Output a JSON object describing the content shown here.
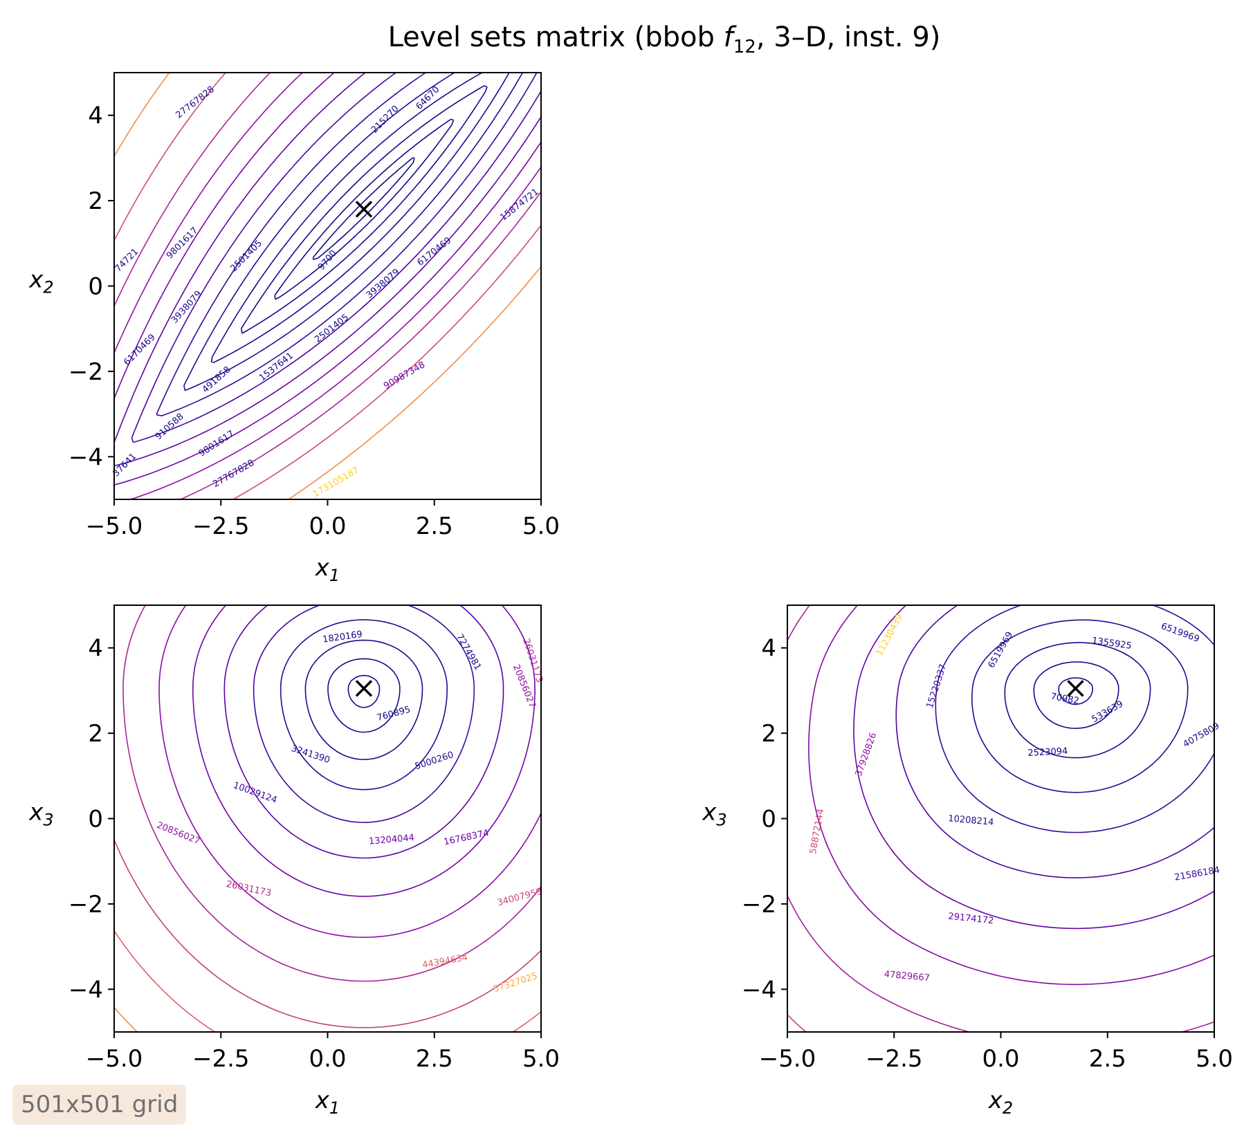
{
  "figure": {
    "title_prefix": "Level sets matrix (bbob ",
    "title_func": "f",
    "title_func_sub": "12",
    "title_suffix": ", 3–D, inst. 9)",
    "badge": "501x501 grid",
    "colormap": [
      "#0d0887",
      "#3e049c",
      "#6a00a8",
      "#900da4",
      "#b12a90",
      "#cc4778",
      "#e16462",
      "#f2844b",
      "#fca636",
      "#fcce25",
      "#f0f921"
    ]
  },
  "chart_data": [
    {
      "type": "contour",
      "panel": "x1-x2",
      "xlabel": "x",
      "xlabel_sub": "1",
      "ylabel": "x",
      "ylabel_sub": "2",
      "xlim": [
        -5,
        5
      ],
      "ylim": [
        -5,
        5
      ],
      "xticks": [
        -5.0,
        -2.5,
        0.0,
        2.5,
        5.0
      ],
      "xtick_labels": [
        "−5.0",
        "−2.5",
        "0.0",
        "2.5",
        "5.0"
      ],
      "yticks": [
        -4,
        -2,
        0,
        2,
        4
      ],
      "ytick_labels": [
        "−4",
        "−2",
        "0",
        "2",
        "4"
      ],
      "optimum": {
        "x": 0.85,
        "y": 1.8
      },
      "contour_labels": [
        {
          "text": "27767828",
          "x": -3.1,
          "y": 4.3,
          "angle": -38,
          "color": "#1b0a8a"
        },
        {
          "text": "64670",
          "x": 2.35,
          "y": 4.4,
          "angle": -45,
          "color": "#0d0887"
        },
        {
          "text": "215270",
          "x": 1.35,
          "y": 3.9,
          "angle": -45,
          "color": "#0d0887"
        },
        {
          "text": "15874721",
          "x": 4.5,
          "y": 1.9,
          "angle": -38,
          "color": "#1b0a8a"
        },
        {
          "text": "74721",
          "x": -4.7,
          "y": 0.6,
          "angle": -45,
          "color": "#1b0a8a"
        },
        {
          "text": "9801617",
          "x": -3.4,
          "y": 1.0,
          "angle": -45,
          "color": "#1b0a8a"
        },
        {
          "text": "2501405",
          "x": -1.9,
          "y": 0.7,
          "angle": -45,
          "color": "#0d0887"
        },
        {
          "text": "9700",
          "x": 0.0,
          "y": 0.6,
          "angle": -50,
          "color": "#0d0887"
        },
        {
          "text": "6170469",
          "x": 2.5,
          "y": 0.8,
          "angle": -38,
          "color": "#1b0a8a"
        },
        {
          "text": "3938079",
          "x": 1.3,
          "y": 0.05,
          "angle": -40,
          "color": "#0d0887"
        },
        {
          "text": "3938079",
          "x": -3.3,
          "y": -0.5,
          "angle": -48,
          "color": "#1b0a8a"
        },
        {
          "text": "6170469",
          "x": -4.4,
          "y": -1.5,
          "angle": -45,
          "color": "#1b0a8a"
        },
        {
          "text": "2501405",
          "x": 0.1,
          "y": -1.0,
          "angle": -38,
          "color": "#0d0887"
        },
        {
          "text": "1537641",
          "x": -1.2,
          "y": -1.9,
          "angle": -38,
          "color": "#0d0887"
        },
        {
          "text": "491858",
          "x": -2.6,
          "y": -2.2,
          "angle": -42,
          "color": "#0d0887"
        },
        {
          "text": "90987348",
          "x": 1.8,
          "y": -2.1,
          "angle": -30,
          "color": "#6a00a8"
        },
        {
          "text": "910588",
          "x": -3.7,
          "y": -3.3,
          "angle": -42,
          "color": "#0d0887"
        },
        {
          "text": "9801617",
          "x": -2.6,
          "y": -3.7,
          "angle": -33,
          "color": "#1b0a8a"
        },
        {
          "text": "27767828",
          "x": -2.2,
          "y": -4.4,
          "angle": -30,
          "color": "#1b0a8a"
        },
        {
          "text": "37641",
          "x": -4.75,
          "y": -4.2,
          "angle": -45,
          "color": "#0d0887"
        },
        {
          "text": "173105187",
          "x": 0.2,
          "y": -4.6,
          "angle": -30,
          "color": "#fcce25"
        }
      ]
    },
    {
      "type": "contour",
      "panel": "x1-x3",
      "xlabel": "x",
      "xlabel_sub": "1",
      "ylabel": "x",
      "ylabel_sub": "3",
      "xlim": [
        -5,
        5
      ],
      "ylim": [
        -5,
        5
      ],
      "xticks": [
        -5.0,
        -2.5,
        0.0,
        2.5,
        5.0
      ],
      "xtick_labels": [
        "−5.0",
        "−2.5",
        "0.0",
        "2.5",
        "5.0"
      ],
      "yticks": [
        -4,
        -2,
        0,
        2,
        4
      ],
      "ytick_labels": [
        "−4",
        "−2",
        "0",
        "2",
        "4"
      ],
      "optimum": {
        "x": 0.85,
        "y": 3.05
      },
      "contour_labels": [
        {
          "text": "1820169",
          "x": 0.35,
          "y": 4.25,
          "angle": -8,
          "color": "#0d0887"
        },
        {
          "text": "7274981",
          "x": 3.3,
          "y": 3.9,
          "angle": 60,
          "color": "#1b0a8a"
        },
        {
          "text": "26031173",
          "x": 4.8,
          "y": 3.7,
          "angle": 72,
          "color": "#b12a90"
        },
        {
          "text": "20856027",
          "x": 4.6,
          "y": 3.1,
          "angle": 68,
          "color": "#900da4"
        },
        {
          "text": "760895",
          "x": 1.55,
          "y": 2.45,
          "angle": -15,
          "color": "#0d0887"
        },
        {
          "text": "3241390",
          "x": -0.4,
          "y": 1.5,
          "angle": 18,
          "color": "#1b0a8a"
        },
        {
          "text": "5000260",
          "x": 2.5,
          "y": 1.35,
          "angle": -18,
          "color": "#1b0a8a"
        },
        {
          "text": "10029124",
          "x": -1.7,
          "y": 0.6,
          "angle": 20,
          "color": "#3e049c"
        },
        {
          "text": "20856027",
          "x": -3.5,
          "y": -0.35,
          "angle": 22,
          "color": "#900da4"
        },
        {
          "text": "13204044",
          "x": 1.5,
          "y": -0.5,
          "angle": -5,
          "color": "#6a00a8"
        },
        {
          "text": "16768374",
          "x": 3.25,
          "y": -0.45,
          "angle": -12,
          "color": "#6a00a8"
        },
        {
          "text": "26031173",
          "x": -1.85,
          "y": -1.65,
          "angle": 12,
          "color": "#b12a90"
        },
        {
          "text": "34007959",
          "x": 4.5,
          "y": -1.85,
          "angle": -15,
          "color": "#cc4778"
        },
        {
          "text": "44394634",
          "x": 2.75,
          "y": -3.35,
          "angle": -10,
          "color": "#e16462"
        },
        {
          "text": "57327025",
          "x": 4.4,
          "y": -3.85,
          "angle": -18,
          "color": "#fca636"
        }
      ]
    },
    {
      "type": "contour",
      "panel": "x2-x3",
      "xlabel": "x",
      "xlabel_sub": "2",
      "ylabel": "x",
      "ylabel_sub": "3",
      "xlim": [
        -5,
        5
      ],
      "ylim": [
        -5,
        5
      ],
      "xticks": [
        -5.0,
        -2.5,
        0.0,
        2.5,
        5.0
      ],
      "xtick_labels": [
        "−5.0",
        "−2.5",
        "0.0",
        "2.5",
        "5.0"
      ],
      "yticks": [
        -4,
        -2,
        0,
        2,
        4
      ],
      "ytick_labels": [
        "−4",
        "−2",
        "0",
        "2",
        "4"
      ],
      "optimum": {
        "x": 1.75,
        "y": 3.05
      },
      "contour_labels": [
        {
          "text": "11230439",
          "x": -2.6,
          "y": 4.3,
          "angle": -62,
          "color": "#fcce25"
        },
        {
          "text": "6519969",
          "x": 4.2,
          "y": 4.35,
          "angle": 20,
          "color": "#1b0a8a"
        },
        {
          "text": "1355925",
          "x": 2.6,
          "y": 4.1,
          "angle": 8,
          "color": "#0d0887"
        },
        {
          "text": "6519969",
          "x": 0.0,
          "y": 3.95,
          "angle": -60,
          "color": "#1b0a8a"
        },
        {
          "text": "15220337",
          "x": -1.5,
          "y": 3.1,
          "angle": -72,
          "color": "#3e049c"
        },
        {
          "text": "70982",
          "x": 1.5,
          "y": 2.8,
          "angle": 10,
          "color": "#0d0887"
        },
        {
          "text": "533639",
          "x": 2.5,
          "y": 2.5,
          "angle": -30,
          "color": "#0d0887"
        },
        {
          "text": "4075809",
          "x": 4.7,
          "y": 1.95,
          "angle": -30,
          "color": "#1b0a8a"
        },
        {
          "text": "37928826",
          "x": -3.15,
          "y": 1.5,
          "angle": -70,
          "color": "#900da4"
        },
        {
          "text": "2523094",
          "x": 1.1,
          "y": 1.55,
          "angle": -3,
          "color": "#0d0887"
        },
        {
          "text": "10208214",
          "x": -0.7,
          "y": -0.05,
          "angle": 5,
          "color": "#1b0a8a"
        },
        {
          "text": "58872144",
          "x": -4.3,
          "y": -0.3,
          "angle": -80,
          "color": "#cc4778"
        },
        {
          "text": "21586184",
          "x": 4.6,
          "y": -1.3,
          "angle": -10,
          "color": "#3e049c"
        },
        {
          "text": "29174172",
          "x": -0.7,
          "y": -2.35,
          "angle": 6,
          "color": "#6a00a8"
        },
        {
          "text": "47829667",
          "x": -2.2,
          "y": -3.7,
          "angle": 5,
          "color": "#900da4"
        }
      ]
    }
  ]
}
